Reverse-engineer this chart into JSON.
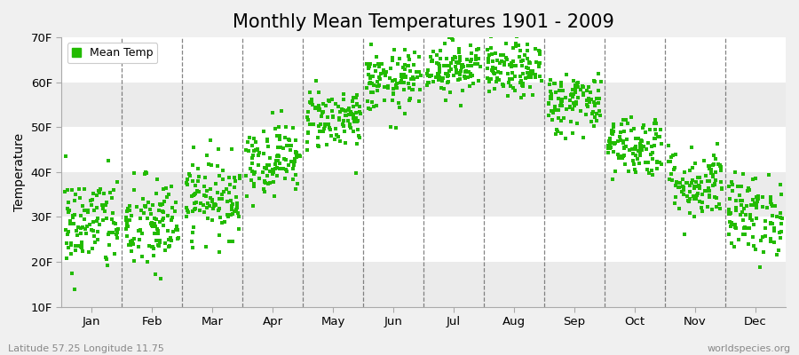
{
  "title": "Monthly Mean Temperatures 1901 - 2009",
  "ylabel": "Temperature",
  "xlabel_months": [
    "Jan",
    "Feb",
    "Mar",
    "Apr",
    "May",
    "Jun",
    "Jul",
    "Aug",
    "Sep",
    "Oct",
    "Nov",
    "Dec"
  ],
  "ytick_labels": [
    "10F",
    "20F",
    "30F",
    "40F",
    "50F",
    "60F",
    "70F"
  ],
  "ytick_values": [
    10,
    20,
    30,
    40,
    50,
    60,
    70
  ],
  "ylim": [
    10,
    70
  ],
  "xlim": [
    0,
    12
  ],
  "dot_color": "#22bb00",
  "dot_size": 6,
  "background_color": "#f0f0f0",
  "plot_bg_color": "#f0f0f0",
  "band_colors": [
    "#ffffff",
    "#ebebeb"
  ],
  "title_fontsize": 15,
  "label_fontsize": 10,
  "tick_fontsize": 9.5,
  "legend_label": "Mean Temp",
  "footer_left": "Latitude 57.25 Longitude 11.75",
  "footer_right": "worldspecies.org",
  "monthly_means_F": [
    28.5,
    28.0,
    34.5,
    43.0,
    52.0,
    60.0,
    63.5,
    62.5,
    55.5,
    46.0,
    37.5,
    30.5
  ],
  "monthly_stds_F": [
    5.5,
    5.5,
    4.5,
    4.0,
    3.5,
    3.5,
    3.0,
    3.0,
    3.5,
    3.5,
    4.0,
    4.5
  ],
  "num_years": 109,
  "seed": 42
}
